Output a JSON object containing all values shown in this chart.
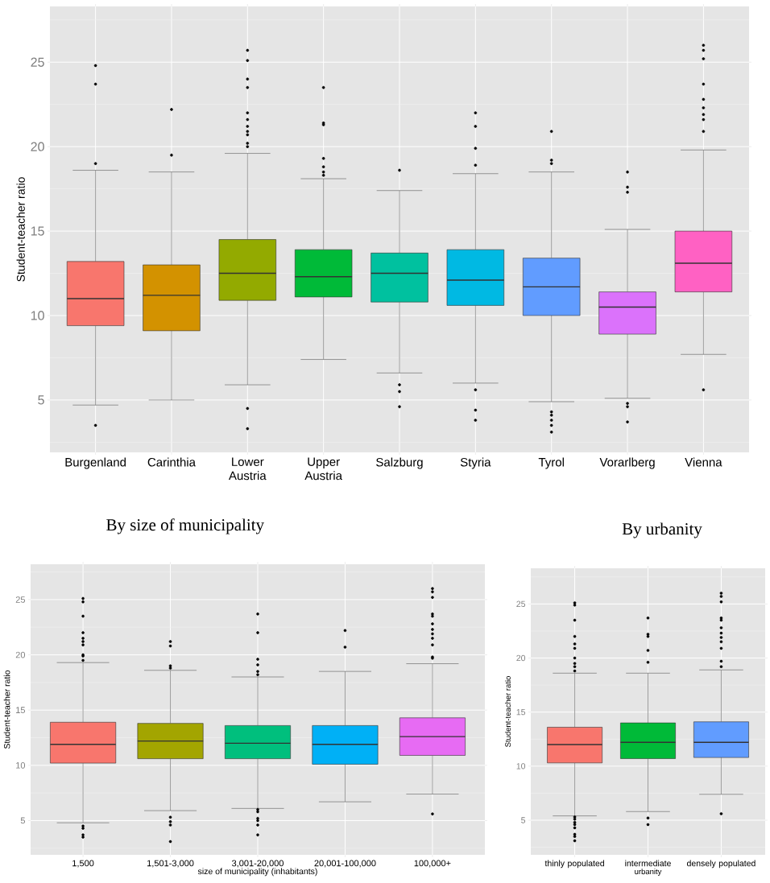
{
  "chart_data": [
    {
      "type": "box",
      "ylabel": "Student-teacher  ratio",
      "categories": [
        "Burgenland",
        "Carinthia",
        "Lower Austria",
        "Upper Austria",
        "Salzburg",
        "Styria",
        "Tyrol",
        "Vorarlberg",
        "Vienna"
      ],
      "colors": [
        "#F8766D",
        "#D39200",
        "#93AA00",
        "#00BA38",
        "#00C19F",
        "#00B9E3",
        "#619CFF",
        "#DB72FB",
        "#FF61C3"
      ],
      "boxes": [
        {
          "low": 4.7,
          "q1": 9.4,
          "median": 11,
          "q3": 13.2,
          "high": 18.6,
          "outliers": [
            3.5,
            19,
            23.7,
            24.8
          ]
        },
        {
          "low": 5,
          "q1": 9.1,
          "median": 11.2,
          "q3": 13,
          "high": 18.5,
          "outliers": [
            19.5,
            22.2
          ]
        },
        {
          "low": 5.9,
          "q1": 10.9,
          "median": 12.5,
          "q3": 14.5,
          "high": 19.6,
          "outliers": [
            3.3,
            4.5,
            20,
            20.2,
            20.7,
            20.9,
            21.2,
            21.6,
            22,
            23.5,
            24,
            25.1,
            25.7
          ]
        },
        {
          "low": 7.4,
          "q1": 11.1,
          "median": 12.3,
          "q3": 13.9,
          "high": 18.1,
          "outliers": [
            18.3,
            18.5,
            18.8,
            19.3,
            21.3,
            21.4,
            23.5
          ]
        },
        {
          "low": 6.6,
          "q1": 10.8,
          "median": 12.5,
          "q3": 13.7,
          "high": 17.4,
          "outliers": [
            4.6,
            5.5,
            5.9,
            18.6
          ]
        },
        {
          "low": 6,
          "q1": 10.6,
          "median": 12.1,
          "q3": 13.9,
          "high": 18.4,
          "outliers": [
            3.8,
            4.4,
            5.6,
            18.9,
            19.9,
            21.2,
            22
          ]
        },
        {
          "low": 4.9,
          "q1": 10,
          "median": 11.7,
          "q3": 13.4,
          "high": 18.5,
          "outliers": [
            3.1,
            3.5,
            3.8,
            4.1,
            4.3,
            19,
            19.2,
            20.9
          ]
        },
        {
          "low": 5.1,
          "q1": 8.9,
          "median": 10.5,
          "q3": 11.4,
          "high": 15.1,
          "outliers": [
            3.7,
            4.6,
            4.8,
            17.3,
            17.6,
            18.5
          ]
        },
        {
          "low": 7.7,
          "q1": 11.4,
          "median": 13.1,
          "q3": 15,
          "high": 19.8,
          "outliers": [
            5.6,
            20.9,
            21.6,
            21.9,
            22.3,
            22.8,
            23.7,
            25.2,
            25.7,
            26
          ]
        }
      ],
      "ylim": [
        1.9,
        28.3
      ],
      "yticks": [
        5,
        10,
        15,
        20,
        25
      ],
      "grid": true
    },
    {
      "type": "box",
      "title": "By size of municipality",
      "xlabel": "size of municipality (inhabitants)",
      "ylabel": "Student-teacher  ratio",
      "categories": [
        "1,500",
        "1,501-3,000",
        "3,001-20,000",
        "20,001-100,000",
        "100,000+"
      ],
      "colors": [
        "#F8766D",
        "#A3A500",
        "#00BF7D",
        "#00B0F6",
        "#E76BF3"
      ],
      "boxes": [
        {
          "low": 4.8,
          "q1": 10.2,
          "median": 11.9,
          "q3": 13.9,
          "high": 19.3,
          "outliers": [
            3.5,
            3.7,
            4.3,
            4.5,
            19.5,
            19.9,
            20,
            20.9,
            21.2,
            21.5,
            22,
            23.5,
            24.8,
            25.1
          ]
        },
        {
          "low": 5.9,
          "q1": 10.6,
          "median": 12.2,
          "q3": 13.8,
          "high": 18.6,
          "outliers": [
            3.1,
            4.6,
            4.9,
            5.3,
            18.8,
            19,
            20.8,
            21.2
          ]
        },
        {
          "low": 6.1,
          "q1": 10.6,
          "median": 12,
          "q3": 13.6,
          "high": 18,
          "outliers": [
            3.7,
            4.6,
            5,
            5.2,
            5.8,
            6,
            18.2,
            18.5,
            19.1,
            19.6,
            22,
            23.7
          ]
        },
        {
          "low": 6.7,
          "q1": 10.1,
          "median": 11.9,
          "q3": 13.6,
          "high": 18.5,
          "outliers": [
            20.7,
            22.2
          ]
        },
        {
          "low": 7.4,
          "q1": 10.9,
          "median": 12.6,
          "q3": 14.3,
          "high": 19.2,
          "outliers": [
            5.6,
            19.7,
            19.8,
            20.9,
            21.5,
            21.9,
            22.3,
            22.8,
            23.5,
            23.7,
            25.2,
            25.7,
            26
          ]
        }
      ],
      "ylim": [
        1.9,
        28.2
      ],
      "yticks": [
        5,
        10,
        15,
        20,
        25
      ],
      "grid": true
    },
    {
      "type": "box",
      "title": "By urbanity",
      "xlabel": "urbanity",
      "ylabel": "Student-teacher  ratio",
      "categories": [
        "thinly populated",
        "intermediate",
        "densely populated"
      ],
      "colors": [
        "#F8766D",
        "#00BA38",
        "#619CFF"
      ],
      "boxes": [
        {
          "low": 5.4,
          "q1": 10.3,
          "median": 12,
          "q3": 13.6,
          "high": 18.6,
          "outliers": [
            3.1,
            3.5,
            3.7,
            4.3,
            4.6,
            4.8,
            5.1,
            5.3,
            18.8,
            19.2,
            19.5,
            20,
            20.9,
            21.3,
            22,
            23.5,
            24.9,
            25.1
          ]
        },
        {
          "low": 5.8,
          "q1": 10.7,
          "median": 12.2,
          "q3": 14,
          "high": 18.6,
          "outliers": [
            4.6,
            5.2,
            19.6,
            20.7,
            22,
            22.2,
            23.7
          ]
        },
        {
          "low": 7.4,
          "q1": 10.8,
          "median": 12.2,
          "q3": 14.1,
          "high": 18.9,
          "outliers": [
            5.6,
            19.2,
            19.7,
            20.9,
            21.5,
            21.9,
            22.3,
            22.8,
            23.5,
            23.7,
            25.2,
            25.7,
            26
          ]
        }
      ],
      "ylim": [
        1.8,
        28.3
      ],
      "yticks": [
        5,
        10,
        15,
        20,
        25
      ],
      "grid": true
    }
  ]
}
